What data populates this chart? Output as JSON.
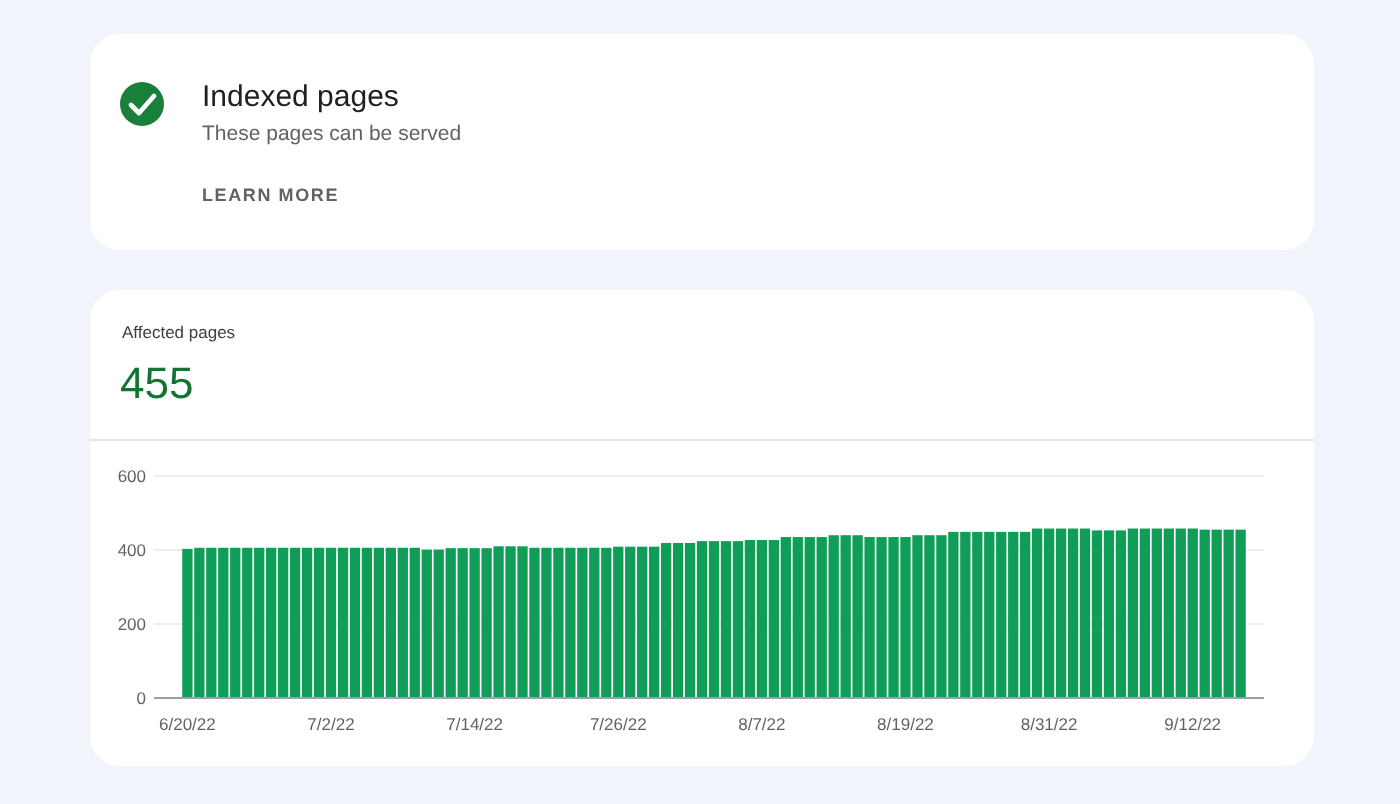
{
  "chart_data": [
    {
      "type": "other",
      "title": "Indexed pages",
      "subtitle": "These pages can be served",
      "annotations": [
        "LEARN MORE"
      ]
    },
    {
      "type": "bar",
      "title": "Affected pages",
      "annotations": [
        "455"
      ],
      "categories": [
        "6/20/22",
        null,
        null,
        null,
        null,
        null,
        null,
        null,
        null,
        null,
        null,
        null,
        "7/2/22",
        null,
        null,
        null,
        null,
        null,
        null,
        null,
        null,
        null,
        null,
        null,
        "7/14/22",
        null,
        null,
        null,
        null,
        null,
        null,
        null,
        null,
        null,
        null,
        null,
        "7/26/22",
        null,
        null,
        null,
        null,
        null,
        null,
        null,
        null,
        null,
        null,
        null,
        "8/7/22",
        null,
        null,
        null,
        null,
        null,
        null,
        null,
        null,
        null,
        null,
        null,
        "8/19/22",
        null,
        null,
        null,
        null,
        null,
        null,
        null,
        null,
        null,
        null,
        null,
        "8/31/22",
        null,
        null,
        null,
        null,
        null,
        null,
        null,
        null,
        null,
        null,
        null,
        "9/12/22",
        null,
        null,
        null,
        null
      ],
      "values": [
        403,
        406,
        406,
        406,
        406,
        406,
        406,
        406,
        406,
        406,
        406,
        406,
        406,
        406,
        406,
        406,
        406,
        406,
        406,
        406,
        401,
        401,
        405,
        405,
        405,
        405,
        410,
        410,
        410,
        406,
        406,
        406,
        406,
        406,
        406,
        406,
        409,
        409,
        409,
        409,
        419,
        419,
        419,
        424,
        424,
        424,
        424,
        427,
        427,
        427,
        435,
        435,
        435,
        435,
        440,
        440,
        440,
        435,
        435,
        435,
        435,
        440,
        440,
        440,
        449,
        449,
        449,
        449,
        449,
        449,
        449,
        458,
        458,
        458,
        458,
        458,
        453,
        453,
        453,
        458,
        458,
        458,
        458,
        458,
        458,
        455,
        455,
        455,
        455
      ],
      "color": "#0f9d58",
      "ylim": [
        0,
        600
      ],
      "yticks": [
        0,
        200,
        400,
        600
      ],
      "grid": "y"
    }
  ]
}
